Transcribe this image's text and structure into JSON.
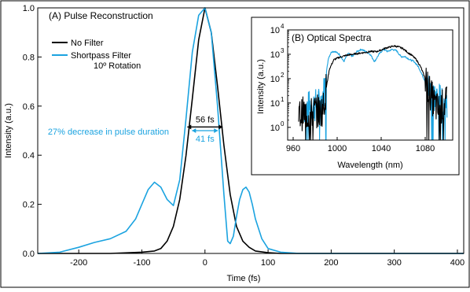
{
  "colors": {
    "no_filter": "#000000",
    "shortpass": "#1BA3E0",
    "axis": "#000000"
  },
  "chart_data": [
    {
      "type": "line",
      "title": "(A) Pulse Reconstruction",
      "xlabel": "Time (fs)",
      "ylabel": "Intensity (a.u.)",
      "xlim": [
        -265,
        410
      ],
      "ylim": [
        0,
        1.0
      ],
      "xticks": [
        -200,
        -100,
        0,
        100,
        200,
        300,
        400
      ],
      "yticks": [
        0.0,
        0.2,
        0.4,
        0.6,
        0.8,
        1.0
      ],
      "legend": {
        "position": "top-left",
        "entries": [
          "No Filter",
          "Shortpass Filter",
          "10º Rotation"
        ]
      },
      "series": [
        {
          "name": "No Filter",
          "color": "#000000",
          "x": [
            -265,
            -150,
            -100,
            -80,
            -70,
            -60,
            -50,
            -40,
            -30,
            -20,
            -10,
            0,
            10,
            20,
            30,
            40,
            50,
            60,
            70,
            80,
            100,
            120,
            150,
            410
          ],
          "y": [
            0,
            0,
            0.005,
            0.01,
            0.02,
            0.05,
            0.11,
            0.22,
            0.4,
            0.63,
            0.87,
            1.0,
            0.9,
            0.68,
            0.44,
            0.24,
            0.11,
            0.05,
            0.025,
            0.01,
            0.003,
            0,
            0,
            0
          ]
        },
        {
          "name": "Shortpass Filter",
          "color": "#1BA3E0",
          "x": [
            -265,
            -230,
            -200,
            -175,
            -150,
            -125,
            -110,
            -100,
            -90,
            -80,
            -70,
            -60,
            -50,
            -40,
            -30,
            -20,
            -10,
            0,
            10,
            20,
            30,
            36,
            40,
            45,
            50,
            55,
            60,
            65,
            70,
            75,
            80,
            90,
            100,
            120,
            150,
            410
          ],
          "y": [
            0,
            0.005,
            0.025,
            0.045,
            0.06,
            0.09,
            0.14,
            0.2,
            0.26,
            0.29,
            0.27,
            0.22,
            0.195,
            0.3,
            0.55,
            0.82,
            0.97,
            1.0,
            0.9,
            0.6,
            0.24,
            0.05,
            0.04,
            0.07,
            0.15,
            0.22,
            0.26,
            0.27,
            0.25,
            0.2,
            0.14,
            0.06,
            0.02,
            0.005,
            0,
            0
          ]
        }
      ],
      "annotations": {
        "fwhm_no_filter": {
          "label": "56 fs",
          "x1": -28,
          "x2": 28,
          "y": 0.515
        },
        "fwhm_shortpass": {
          "label": "41 fs",
          "x1": -20.5,
          "x2": 20.5,
          "y": 0.5
        },
        "decrease_text": "27% decrease in pulse duration"
      }
    },
    {
      "type": "line",
      "title": "(B) Optical Spectra",
      "xlabel": "Wavelength (nm)",
      "ylabel": "Intensity (a.u.)",
      "xlim": [
        955,
        1105
      ],
      "ylim_log": [
        0.3,
        10000
      ],
      "log_y": true,
      "xticks": [
        960,
        1000,
        1040,
        1080
      ],
      "yticks": [
        {
          "base": "10",
          "exp": "0",
          "value": 1
        },
        {
          "base": "10",
          "exp": "1",
          "value": 10
        },
        {
          "base": "10",
          "exp": "2",
          "value": 100
        },
        {
          "base": "10",
          "exp": "3",
          "value": 1000
        },
        {
          "base": "10",
          "exp": "4",
          "value": 10000
        }
      ],
      "series": [
        {
          "name": "Shortpass Filter",
          "color": "#1BA3E0",
          "x": [
            970,
            980,
            985,
            988,
            990,
            992,
            995,
            998,
            1002,
            1006,
            1010,
            1014,
            1018,
            1022,
            1026,
            1030,
            1034,
            1038,
            1042,
            1046,
            1050,
            1054,
            1058,
            1062,
            1066,
            1070,
            1074,
            1078,
            1082,
            1086,
            1090,
            1094,
            1100
          ],
          "y": [
            6,
            8,
            10,
            30,
            150,
            700,
            1300,
            1300,
            1000,
            500,
            1100,
            800,
            1300,
            1600,
            1300,
            1000,
            500,
            1000,
            1600,
            1300,
            1600,
            1400,
            800,
            800,
            600,
            500,
            300,
            120,
            50,
            25,
            15,
            12,
            12
          ]
        },
        {
          "name": "No Filter",
          "color": "#000000",
          "x": [
            965,
            970,
            975,
            980,
            985,
            988,
            990,
            993,
            997,
            1002,
            1008,
            1014,
            1020,
            1026,
            1030,
            1036,
            1040,
            1044,
            1048,
            1052,
            1056,
            1060,
            1064,
            1068,
            1072,
            1076,
            1080,
            1084,
            1088,
            1092,
            1096,
            1100
          ],
          "y": [
            3,
            4,
            3,
            5,
            4,
            8,
            40,
            250,
            600,
            750,
            900,
            1000,
            1100,
            1200,
            1300,
            1300,
            1500,
            1800,
            2000,
            2200,
            2000,
            1700,
            1200,
            900,
            600,
            300,
            100,
            30,
            10,
            5,
            8,
            10
          ]
        }
      ]
    }
  ]
}
